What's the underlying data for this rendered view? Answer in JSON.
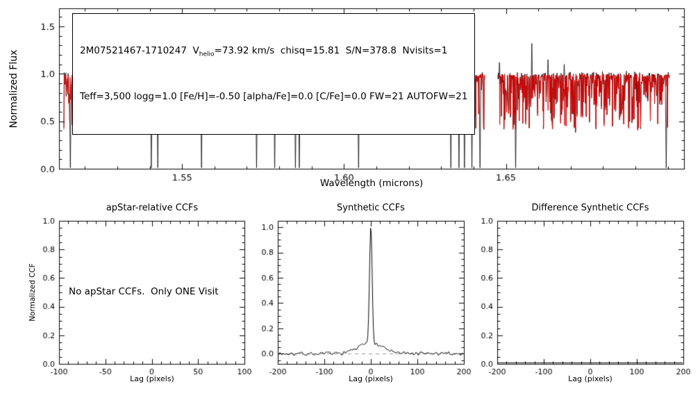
{
  "annotation": {
    "line1_pre": "2M07521467-1710247  V",
    "line1_sub": "helio",
    "line1_post": "=73.92 km/s  chisq=15.81  S/N=378.8  Nvisits=1",
    "line2": "Teff=3,500 logg=1.0 [Fe/H]=-0.50 [alpha/Fe]=0.0 [C/Fe]=0.0 FW=21 AUTOFW=21"
  },
  "chart_data": [
    {
      "type": "line",
      "title": "",
      "xlabel": "Wavelength (microns)",
      "ylabel": "Normalized Flux",
      "xlim": [
        1.512,
        1.705
      ],
      "ylim": [
        0,
        1.69
      ],
      "xticks": [
        1.55,
        1.6,
        1.65
      ],
      "xtick_labels": [
        "1.55",
        "1.60",
        "1.65"
      ],
      "x_minor": 0.01,
      "yticks": [
        0.0,
        0.5,
        1.0,
        1.5
      ],
      "ytick_labels": [
        "0.0",
        "0.5",
        "1.0",
        "1.5"
      ],
      "y_minor": 0.1,
      "grid": false,
      "series": [
        {
          "name": "observed",
          "color": "#000000"
        },
        {
          "name": "synthetic model",
          "color": "#dd0000"
        }
      ],
      "segments": [
        [
          1.5135,
          1.5872
        ],
        [
          1.5915,
          1.6435
        ],
        [
          1.6475,
          1.7005
        ]
      ],
      "continuum": 0.985,
      "noise_seed": 12345,
      "deep_absorption_lines": [
        1.5155,
        1.5405,
        1.5425,
        1.556,
        1.573,
        1.5786,
        1.585,
        1.5862,
        1.6045,
        1.633,
        1.6355,
        1.6372,
        1.6395,
        1.642,
        1.653,
        1.6995
      ],
      "emission_spikes": [
        [
          1.5186,
          1.22
        ],
        [
          1.525,
          1.15
        ],
        [
          1.543,
          1.18
        ],
        [
          1.551,
          1.12
        ],
        [
          1.567,
          1.35
        ],
        [
          1.5755,
          1.3
        ],
        [
          1.592,
          1.1
        ],
        [
          1.601,
          1.4
        ],
        [
          1.606,
          1.15
        ],
        [
          1.632,
          1.18
        ],
        [
          1.648,
          1.12
        ],
        [
          1.658,
          1.32
        ],
        [
          1.663,
          1.15
        ],
        [
          1.668,
          1.1
        ]
      ]
    },
    {
      "type": "empty",
      "title": "apStar-relative CCFs",
      "xlabel": "Lag (pixels)",
      "ylabel": "Normalized CCF",
      "xlim": [
        -100,
        100
      ],
      "ylim": [
        0,
        1.0
      ],
      "xticks": [
        -100,
        -50,
        0,
        50,
        100
      ],
      "xtick_labels": [
        "-100",
        "-50",
        "0",
        "50",
        "100"
      ],
      "x_minor": 10,
      "yticks": [
        0,
        0.2,
        0.4,
        0.6,
        0.8,
        1.0
      ],
      "ytick_labels": [
        "0.0",
        "0.2",
        "0.4",
        "0.6",
        "0.8",
        "1.0"
      ],
      "y_minor": 0.05,
      "grid": false,
      "message": "No apStar CCFs.  Only ONE Visit"
    },
    {
      "type": "line",
      "title": "Synthetic CCFs",
      "xlabel": "Lag (pixels)",
      "xlim": [
        -200,
        200
      ],
      "ylim": [
        -0.08,
        1.05
      ],
      "xticks": [
        -200,
        -100,
        0,
        100,
        200
      ],
      "xtick_labels": [
        "-200",
        "-100",
        "0",
        "100",
        "200"
      ],
      "x_minor": 20,
      "yticks": [
        0,
        0.2,
        0.4,
        0.6,
        0.8,
        1.0
      ],
      "ytick_labels": [
        "0.0",
        "0.2",
        "0.4",
        "0.6",
        "0.8",
        "1.0"
      ],
      "y_minor": 0.05,
      "grid": false,
      "line_color": "#000000",
      "zero_dashed_line": 0.0,
      "peak": {
        "center": 0,
        "height": 0.93,
        "sigma": 2.8
      },
      "pedestal": {
        "height": 0.085,
        "sigma": 26
      },
      "noise_amp": 0.02,
      "noise_seed": 7
    },
    {
      "type": "line",
      "title": "Difference Synthetic CCFs",
      "xlabel": "Lag (pixels)",
      "xlim": [
        -200,
        200
      ],
      "ylim": [
        0,
        1.0
      ],
      "xticks": [
        -200,
        -100,
        0,
        100,
        200
      ],
      "xtick_labels": [
        "-200",
        "-100",
        "0",
        "100",
        "200"
      ],
      "x_minor": 20,
      "yticks": [
        0,
        0.2,
        0.4,
        0.6,
        0.8,
        1.0
      ],
      "ytick_labels": [
        "0.0",
        "0.2",
        "0.4",
        "0.6",
        "0.8",
        "1.0"
      ],
      "y_minor": 0.05,
      "grid": false,
      "flat_line_at": 0.0
    }
  ]
}
